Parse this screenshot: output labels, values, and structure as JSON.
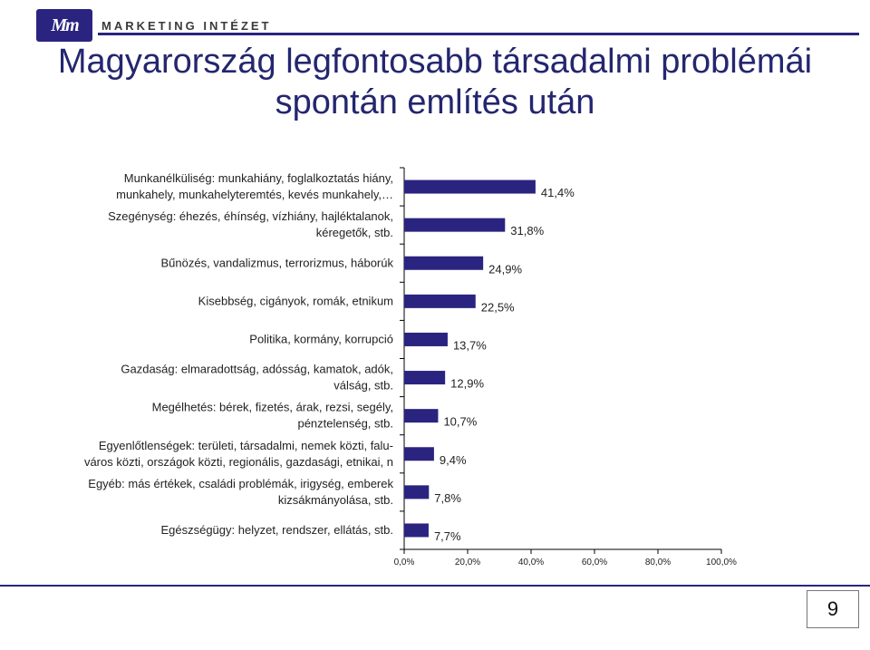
{
  "header": {
    "logo_mark": "Mm",
    "logo_text": "MARKETING INTÉZET"
  },
  "title": {
    "line1": "Magyarország legfontosabb társadalmi problémái",
    "line2": "spontán említés után"
  },
  "colors": {
    "bar": "#2a2480",
    "title": "#24266f",
    "accent": "#2a2480"
  },
  "chart_data": {
    "type": "bar",
    "orientation": "horizontal",
    "categories": [
      [
        "Munkanélküliség: munkahiány, foglalkoztatás hiány,",
        "munkahely, munkahelyteremtés, kevés munkahely,…"
      ],
      [
        "Szegénység: éhezés, éhínség, vízhiány, hajléktalanok,",
        "kéregetők, stb."
      ],
      [
        "Bűnözés, vandalizmus, terrorizmus, háborúk"
      ],
      [
        "Kisebbség, cigányok, romák, etnikum"
      ],
      [
        "Politika, kormány, korrupció"
      ],
      [
        "Gazdaság: elmaradottság, adósság, kamatok, adók,",
        "válság, stb."
      ],
      [
        "Megélhetés: bérek, fizetés, árak, rezsi, segély,",
        "pénztelenség, stb."
      ],
      [
        "Egyenlőtlenségek: területi, társadalmi, nemek közti, falu-",
        "város közti, országok közti, regionális, gazdasági, etnikai, n"
      ],
      [
        "Egyéb: más értékek, családi problémák, irigység, emberek",
        "kizsákmányolása, stb."
      ],
      [
        "Egészségügy: helyzet, rendszer, ellátás, stb."
      ]
    ],
    "values": [
      41.4,
      31.8,
      24.9,
      22.5,
      13.7,
      12.9,
      10.7,
      9.4,
      7.8,
      7.7
    ],
    "value_labels": [
      "41,4%",
      "31,8%",
      "24,9%",
      "22,5%",
      "13,7%",
      "12,9%",
      "10,7%",
      "9,4%",
      "7,8%",
      "7,7%"
    ],
    "xlim": [
      0,
      100
    ],
    "xticks": [
      0,
      20,
      40,
      60,
      80,
      100
    ],
    "xtick_labels": [
      "0,0%",
      "20,0%",
      "40,0%",
      "60,0%",
      "80,0%",
      "100,0%"
    ],
    "title": "",
    "xlabel": "",
    "ylabel": ""
  },
  "footer": {
    "page_number": "9"
  }
}
